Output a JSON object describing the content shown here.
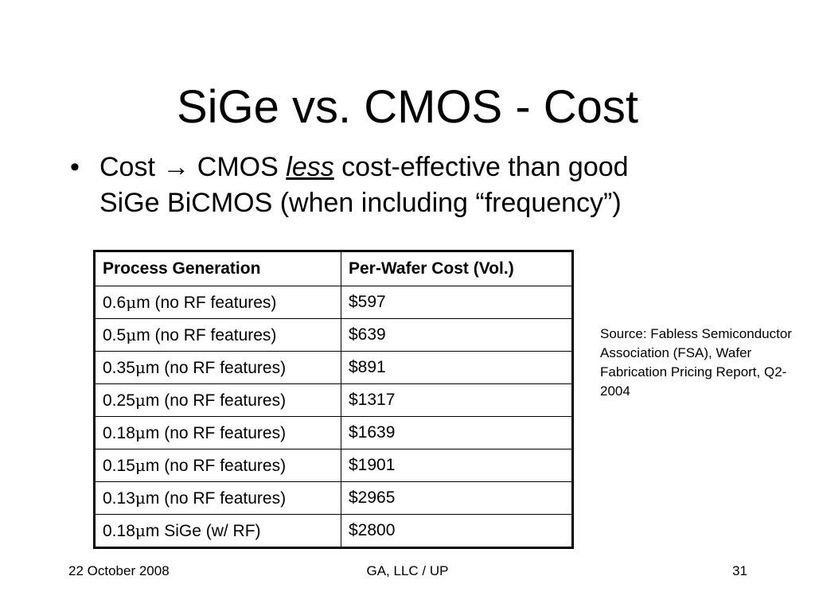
{
  "slide": {
    "title": "SiGe vs. CMOS - Cost",
    "bullet": {
      "marker": "•",
      "prefix": "Cost ",
      "arrow": "→",
      "pre_emphasis": " CMOS ",
      "emphasis": "less",
      "line1_rest": " cost-effective than good",
      "line2": "SiGe BiCMOS (when including “frequency”)"
    },
    "table": {
      "headers": [
        "Process Generation",
        "Per-Wafer Cost (Vol.)"
      ],
      "mu_symbol": "μ",
      "rows": [
        {
          "size": "0.6",
          "rest": "m (no RF features)",
          "cost": "$597"
        },
        {
          "size": "0.5",
          "rest": "m (no RF features)",
          "cost": "$639"
        },
        {
          "size": "0.35",
          "rest": "m (no RF features)",
          "cost": "$891"
        },
        {
          "size": "0.25",
          "rest": "m (no RF features)",
          "cost": "$1317"
        },
        {
          "size": "0.18",
          "rest": "m (no RF features)",
          "cost": "$1639"
        },
        {
          "size": "0.15",
          "rest": "m (no RF features)",
          "cost": "$1901"
        },
        {
          "size": "0.13",
          "rest": "m (no RF features)",
          "cost": "$2965"
        },
        {
          "size": "0.18",
          "rest": "m SiGe (w/ RF)",
          "cost": "$2800"
        }
      ]
    },
    "source_note": "Source:  Fabless Semiconductor Association (FSA), Wafer Fabrication Pricing Report, Q2-2004",
    "footer": {
      "date": "22 October 2008",
      "center": "GA, LLC / UP",
      "page": "31"
    }
  }
}
